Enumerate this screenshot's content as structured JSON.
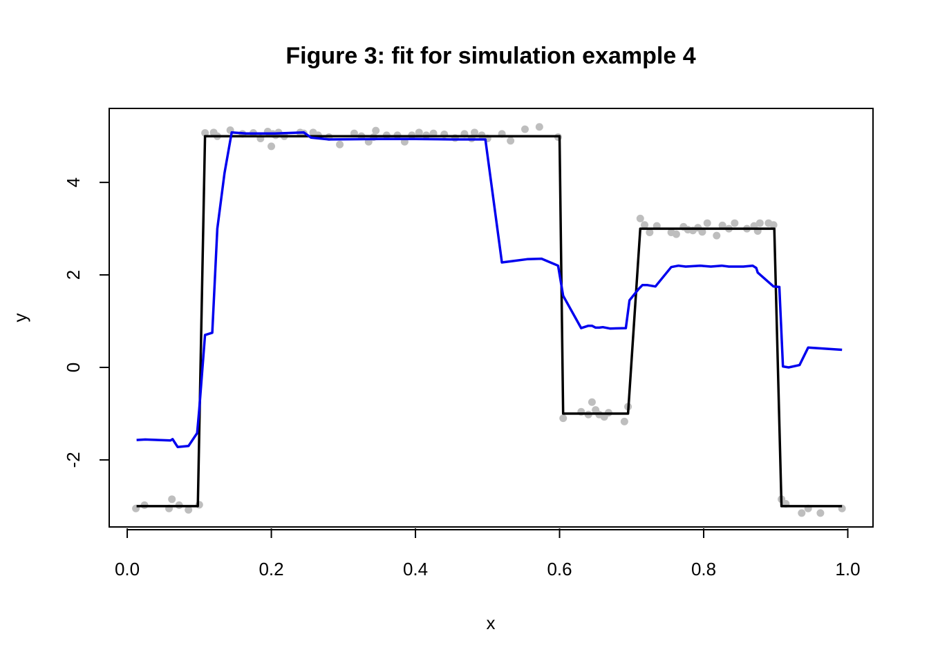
{
  "chart_data": {
    "type": "line",
    "title": "Figure 3: fit for simulation example 4",
    "xlabel": "x",
    "ylabel": "y",
    "xlim": [
      -0.025,
      1.035
    ],
    "ylim": [
      -3.45,
      5.6
    ],
    "xticks": [
      0.0,
      0.2,
      0.4,
      0.6,
      0.8,
      1.0
    ],
    "xtick_labels": [
      "0.0",
      "0.2",
      "0.4",
      "0.6",
      "0.8",
      "1.0"
    ],
    "yticks": [
      -2,
      0,
      2,
      4
    ],
    "ytick_labels": [
      "-2",
      "0",
      "2",
      "4"
    ],
    "grid": false,
    "legend": "none",
    "colors": {
      "points": "#bebebe",
      "truth": "#000000",
      "fit": "#0000ee"
    },
    "points": {
      "x": [
        0.012,
        0.024,
        0.058,
        0.062,
        0.072,
        0.085,
        0.1,
        0.108,
        0.12,
        0.125,
        0.143,
        0.16,
        0.175,
        0.185,
        0.195,
        0.2,
        0.202,
        0.206,
        0.21,
        0.218,
        0.24,
        0.245,
        0.258,
        0.265,
        0.28,
        0.295,
        0.315,
        0.325,
        0.335,
        0.342,
        0.345,
        0.36,
        0.375,
        0.385,
        0.395,
        0.405,
        0.415,
        0.425,
        0.44,
        0.455,
        0.468,
        0.478,
        0.482,
        0.492,
        0.5,
        0.52,
        0.532,
        0.552,
        0.572,
        0.598,
        0.605,
        0.63,
        0.64,
        0.645,
        0.65,
        0.655,
        0.662,
        0.668,
        0.69,
        0.695,
        0.712,
        0.718,
        0.725,
        0.735,
        0.755,
        0.762,
        0.772,
        0.778,
        0.785,
        0.792,
        0.798,
        0.805,
        0.818,
        0.826,
        0.835,
        0.843,
        0.86,
        0.87,
        0.875,
        0.878,
        0.89,
        0.897,
        0.908,
        0.914,
        0.936,
        0.945,
        0.962,
        0.992
      ],
      "y": [
        -3.05,
        -2.98,
        -3.05,
        -2.85,
        -2.98,
        -3.08,
        -2.97,
        5.07,
        5.08,
        5.0,
        5.13,
        5.05,
        5.07,
        4.95,
        5.1,
        4.78,
        5.05,
        5.02,
        5.08,
        5.0,
        5.08,
        5.06,
        5.08,
        5.02,
        4.98,
        4.82,
        5.06,
        5.0,
        4.88,
        4.98,
        5.12,
        5.02,
        5.02,
        4.88,
        5.02,
        5.08,
        5.02,
        5.06,
        5.04,
        4.96,
        5.05,
        4.95,
        5.08,
        5.02,
        4.95,
        5.05,
        4.9,
        5.15,
        5.2,
        4.98,
        -1.1,
        -0.96,
        -1.02,
        -0.75,
        -0.92,
        -1.02,
        -1.07,
        -0.98,
        -1.17,
        -0.85,
        3.22,
        3.08,
        2.92,
        3.06,
        2.92,
        2.88,
        3.04,
        2.98,
        2.96,
        3.02,
        2.93,
        3.12,
        2.85,
        3.07,
        3.0,
        3.12,
        3.0,
        3.06,
        2.95,
        3.12,
        3.12,
        3.08,
        -2.85,
        -2.95,
        -3.15,
        -3.05,
        -3.15,
        -3.05
      ]
    },
    "series": [
      {
        "x": [
          0.013,
          0.098,
          0.108,
          0.6,
          0.605,
          0.695,
          0.712,
          0.898,
          0.908,
          0.992
        ],
        "y": [
          -3.0,
          -3.0,
          5.0,
          5.0,
          -1.0,
          -1.0,
          3.0,
          3.0,
          -3.0,
          -3.0
        ]
      },
      {
        "x": [
          0.013,
          0.025,
          0.06,
          0.063,
          0.07,
          0.085,
          0.097,
          0.1,
          0.108,
          0.118,
          0.125,
          0.135,
          0.145,
          0.165,
          0.205,
          0.245,
          0.255,
          0.28,
          0.35,
          0.4,
          0.45,
          0.497,
          0.52,
          0.535,
          0.555,
          0.575,
          0.598,
          0.605,
          0.63,
          0.64,
          0.645,
          0.65,
          0.655,
          0.66,
          0.67,
          0.692,
          0.697,
          0.71,
          0.715,
          0.722,
          0.733,
          0.755,
          0.765,
          0.775,
          0.795,
          0.81,
          0.825,
          0.835,
          0.855,
          0.868,
          0.873,
          0.875,
          0.897,
          0.905,
          0.91,
          0.918,
          0.933,
          0.945,
          0.992
        ],
        "y": [
          -1.57,
          -1.56,
          -1.58,
          -1.55,
          -1.72,
          -1.7,
          -1.42,
          -0.9,
          0.7,
          0.75,
          3.0,
          4.2,
          5.08,
          5.06,
          5.06,
          5.08,
          4.97,
          4.93,
          4.94,
          4.94,
          4.93,
          4.93,
          2.27,
          2.3,
          2.34,
          2.35,
          2.2,
          1.55,
          0.85,
          0.9,
          0.9,
          0.86,
          0.86,
          0.87,
          0.84,
          0.85,
          1.45,
          1.7,
          1.78,
          1.78,
          1.75,
          2.17,
          2.2,
          2.18,
          2.2,
          2.18,
          2.2,
          2.18,
          2.18,
          2.2,
          2.15,
          2.05,
          1.75,
          1.74,
          0.02,
          0.0,
          0.05,
          0.43,
          0.38
        ]
      }
    ]
  }
}
